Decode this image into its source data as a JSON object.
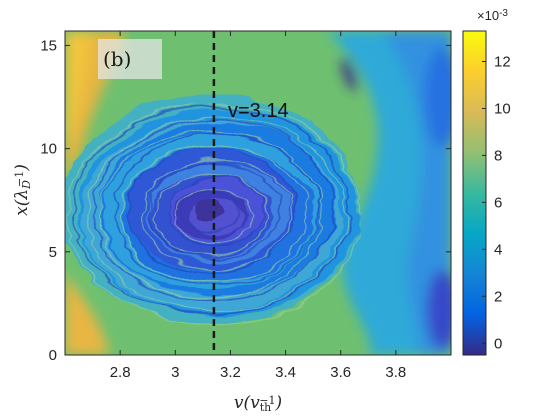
{
  "chart_data": {
    "type": "heatmap",
    "panel_label": "(b)",
    "xlabel": "v(v_th^-1)",
    "ylabel": "x(λ_D^-1)",
    "xlim": [
      2.6,
      4.0
    ],
    "ylim": [
      0,
      15.7
    ],
    "x_ticks": [
      2.8,
      3.0,
      3.2,
      3.4,
      3.6,
      3.8
    ],
    "x_tick_labels": [
      "2.8",
      "3",
      "3.2",
      "3.4",
      "3.6",
      "3.8"
    ],
    "y_ticks": [
      0,
      5,
      10,
      15
    ],
    "y_tick_labels": [
      "0",
      "5",
      "10",
      "15"
    ],
    "colorbar": {
      "colormap": "parula",
      "range": [
        -0.0005,
        0.0133
      ],
      "ticks": [
        0,
        2,
        4,
        6,
        8,
        10,
        12
      ],
      "tick_labels": [
        "0",
        "2",
        "4",
        "6",
        "8",
        "10",
        "12"
      ],
      "multiplier_base": "×10",
      "multiplier_exp": "-3"
    },
    "annotation": {
      "text": "v=3.14",
      "line_x": 3.14,
      "line_style": "dashed"
    },
    "field_description": "phase-space distribution with a trapped-particle vortex (island) centred near v=3.14, x≈6.9; background level ~0.008, vortex core ~0.0015, high-value filaments near v<2.75",
    "grid": false
  }
}
